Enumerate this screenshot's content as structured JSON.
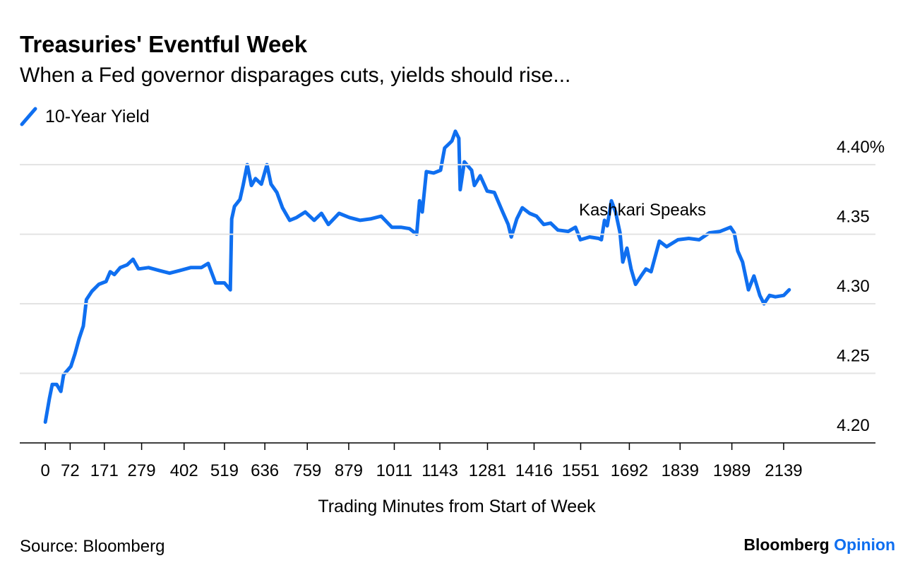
{
  "chart_data": {
    "type": "line",
    "title": "Treasuries' Eventful Week",
    "subtitle": "When a Fed governor disparages cuts, yields should rise...",
    "x_label": "Trading Minutes from Start of Week",
    "source": "Source: Bloomberg",
    "brand": [
      "Bloomberg",
      "Opinion"
    ],
    "annotations": [
      "Kashkari Speaks"
    ],
    "xlim": [
      -74,
      2405
    ],
    "xticks": [
      0,
      72,
      171,
      279,
      402,
      519,
      636,
      759,
      879,
      1011,
      1143,
      1281,
      1416,
      1551,
      1692,
      1839,
      1989,
      2139
    ],
    "ylim": [
      4.2,
      4.43
    ],
    "yticks": [
      {
        "value": 4.2,
        "label": "4.20"
      },
      {
        "value": 4.25,
        "label": "4.25"
      },
      {
        "value": 4.3,
        "label": "4.30"
      },
      {
        "value": 4.35,
        "label": "4.35"
      },
      {
        "value": 4.4,
        "label": "4.40%"
      }
    ],
    "grid": true,
    "series": [
      {
        "name": "10-Year Yield",
        "color": "#0f6ff0",
        "x": [
          0,
          12,
          20,
          33,
          45,
          53,
          74,
          86,
          98,
          110,
          119,
          135,
          155,
          176,
          188,
          200,
          217,
          237,
          254,
          270,
          299,
          329,
          360,
          391,
          421,
          452,
          472,
          493,
          519,
          536,
          540,
          548,
          564,
          573,
          585,
          597,
          609,
          626,
          642,
          654,
          671,
          687,
          708,
          728,
          753,
          779,
          800,
          820,
          851,
          881,
          912,
          942,
          973,
          1004,
          1030,
          1055,
          1076,
          1084,
          1092,
          1104,
          1125,
          1145,
          1157,
          1178,
          1188,
          1198,
          1202,
          1214,
          1235,
          1243,
          1260,
          1280,
          1301,
          1325,
          1341,
          1350,
          1366,
          1382,
          1403,
          1423,
          1444,
          1464,
          1485,
          1515,
          1536,
          1550,
          1577,
          1603,
          1611,
          1620,
          1628,
          1640,
          1652,
          1665,
          1673,
          1685,
          1697,
          1710,
          1726,
          1740,
          1755,
          1769,
          1779,
          1800,
          1833,
          1864,
          1894,
          1924,
          1955,
          1985,
          1996,
          2006,
          2020,
          2037,
          2053,
          2070,
          2082,
          2098,
          2115,
          2139,
          2155
        ],
        "values": [
          4.215,
          4.232,
          4.242,
          4.242,
          4.237,
          4.249,
          4.255,
          4.264,
          4.275,
          4.284,
          4.303,
          4.309,
          4.314,
          4.316,
          4.323,
          4.321,
          4.326,
          4.328,
          4.332,
          4.325,
          4.326,
          4.324,
          4.322,
          4.324,
          4.326,
          4.326,
          4.329,
          4.315,
          4.315,
          4.31,
          4.361,
          4.37,
          4.375,
          4.385,
          4.4,
          4.385,
          4.39,
          4.386,
          4.4,
          4.386,
          4.38,
          4.369,
          4.36,
          4.362,
          4.366,
          4.36,
          4.365,
          4.357,
          4.365,
          4.362,
          4.36,
          4.361,
          4.363,
          4.355,
          4.355,
          4.354,
          4.35,
          4.374,
          4.366,
          4.395,
          4.394,
          4.396,
          4.412,
          4.417,
          4.424,
          4.419,
          4.382,
          4.402,
          4.396,
          4.385,
          4.392,
          4.381,
          4.38,
          4.366,
          4.357,
          4.348,
          4.361,
          4.369,
          4.365,
          4.363,
          4.357,
          4.358,
          4.353,
          4.352,
          4.355,
          4.346,
          4.348,
          4.347,
          4.346,
          4.36,
          4.356,
          4.374,
          4.366,
          4.351,
          4.33,
          4.34,
          4.325,
          4.314,
          4.32,
          4.325,
          4.323,
          4.336,
          4.345,
          4.341,
          4.346,
          4.347,
          4.346,
          4.351,
          4.352,
          4.355,
          4.351,
          4.338,
          4.33,
          4.31,
          4.32,
          4.306,
          4.3,
          4.306,
          4.305,
          4.306,
          4.31
        ]
      }
    ]
  }
}
